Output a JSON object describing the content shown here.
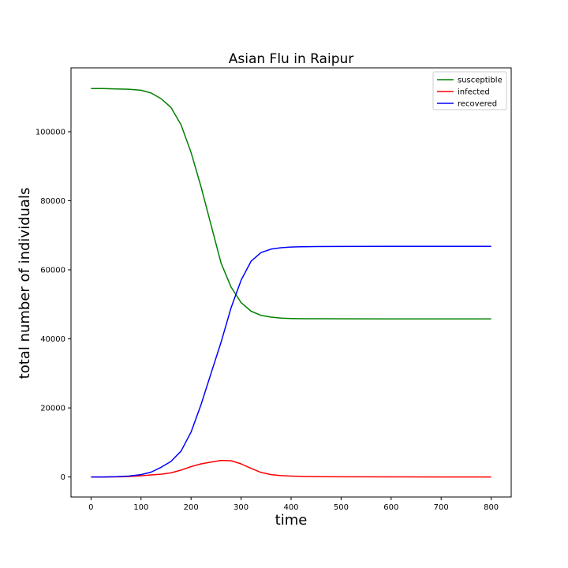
{
  "chart_data": {
    "type": "line",
    "title": "Asian Flu in Raipur",
    "xlabel": "time",
    "ylabel": "total number of individuals",
    "xlim": [
      -40,
      840
    ],
    "ylim": [
      -5800,
      118500
    ],
    "xticks": [
      0,
      100,
      200,
      300,
      400,
      500,
      600,
      700,
      800
    ],
    "yticks": [
      0,
      20000,
      40000,
      60000,
      80000,
      100000
    ],
    "grid": false,
    "legend_position": "top-right",
    "x": [
      0,
      25,
      50,
      75,
      100,
      120,
      140,
      160,
      180,
      200,
      220,
      240,
      260,
      280,
      300,
      320,
      340,
      360,
      380,
      400,
      425,
      450,
      500,
      600,
      700,
      800
    ],
    "series": [
      {
        "name": "susceptible",
        "color": "#008000",
        "values": [
          112500,
          112500,
          112400,
          112300,
          112000,
          111200,
          109600,
          107000,
          102000,
          94000,
          84000,
          73000,
          62000,
          55000,
          50500,
          48000,
          46800,
          46300,
          46000,
          45900,
          45850,
          45830,
          45820,
          45800,
          45800,
          45800
        ]
      },
      {
        "name": "infected",
        "color": "#ff0000",
        "values": [
          0,
          5,
          30,
          120,
          350,
          600,
          800,
          1200,
          2000,
          3000,
          3800,
          4300,
          4800,
          4700,
          3800,
          2500,
          1300,
          700,
          400,
          250,
          150,
          100,
          50,
          20,
          10,
          5
        ]
      },
      {
        "name": "recovered",
        "color": "#0000ff",
        "values": [
          0,
          10,
          80,
          250,
          700,
          1400,
          2800,
          4500,
          7500,
          13000,
          21000,
          30000,
          39000,
          49000,
          57000,
          62500,
          65000,
          66000,
          66400,
          66600,
          66700,
          66750,
          66780,
          66800,
          66800,
          66800
        ]
      }
    ]
  }
}
